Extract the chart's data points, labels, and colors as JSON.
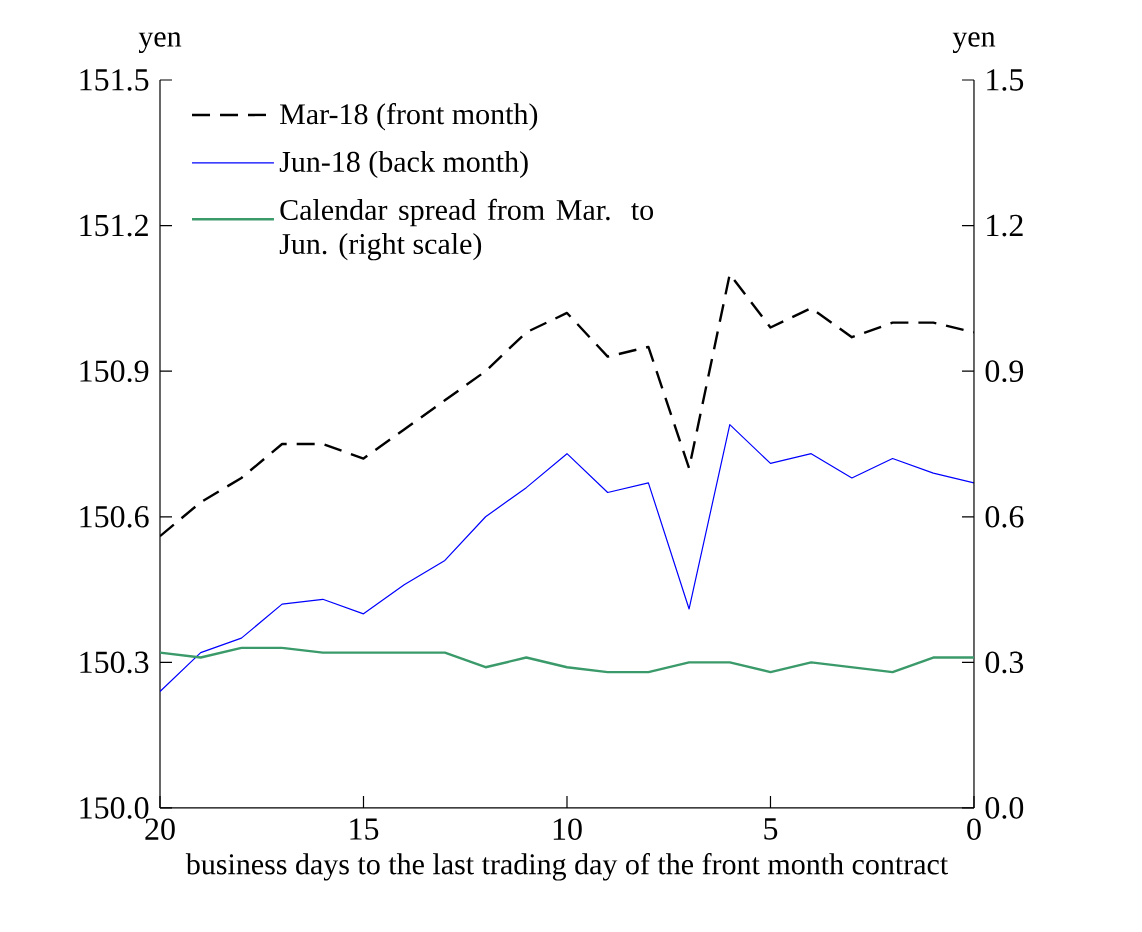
{
  "chart_data": {
    "type": "line",
    "xlabel": "business days to the last trading day of the front month contract",
    "ylabel": "yen",
    "y2label": "yen",
    "x": [
      20,
      19,
      18,
      17,
      16,
      15,
      14,
      13,
      12,
      11,
      10,
      9,
      8,
      7,
      6,
      5,
      4,
      3,
      2,
      1,
      0
    ],
    "xlim": [
      20,
      0
    ],
    "xticks": [
      20,
      15,
      10,
      5,
      0
    ],
    "ylim": [
      150.0,
      151.5
    ],
    "yticks": [
      {
        "value": 150.0,
        "label": "150.0"
      },
      150.3,
      150.6,
      150.9,
      151.2,
      151.5
    ],
    "y2lim": [
      0.0,
      1.5
    ],
    "y2ticks": [
      {
        "value": 0.0,
        "label": "0.0"
      },
      0.3,
      0.6,
      0.9,
      1.2,
      1.5
    ],
    "legend": "top left",
    "grid": false,
    "series": [
      {
        "name": "Mar-18 (front month)",
        "color": "#000000",
        "line_style": "dashed",
        "values": [
          150.56,
          150.63,
          150.68,
          150.75,
          150.75,
          150.72,
          150.78,
          150.84,
          150.9,
          150.98,
          151.02,
          150.93,
          150.95,
          150.7,
          151.1,
          150.99,
          151.03,
          150.97,
          151.0,
          151.0,
          150.98
        ]
      },
      {
        "name": "Jun-18 (back month)",
        "color": "#0000ff",
        "line_style": "solid",
        "values": [
          150.24,
          150.32,
          150.35,
          150.42,
          150.43,
          150.4,
          150.46,
          150.51,
          150.6,
          150.66,
          150.73,
          150.65,
          150.67,
          150.41,
          150.79,
          150.71,
          150.73,
          150.68,
          150.72,
          150.69,
          150.67
        ]
      },
      {
        "name": "Calendar spread from Mar. to Jun. (right scale)",
        "color": "#3a9a6a",
        "line_style": "solid",
        "axis": "y2",
        "values": [
          0.32,
          0.31,
          0.33,
          0.33,
          0.32,
          0.32,
          0.32,
          0.32,
          0.29,
          0.31,
          0.29,
          0.28,
          0.28,
          0.3,
          0.3,
          0.28,
          0.3,
          0.29,
          0.28,
          0.31,
          0.31
        ]
      }
    ]
  }
}
